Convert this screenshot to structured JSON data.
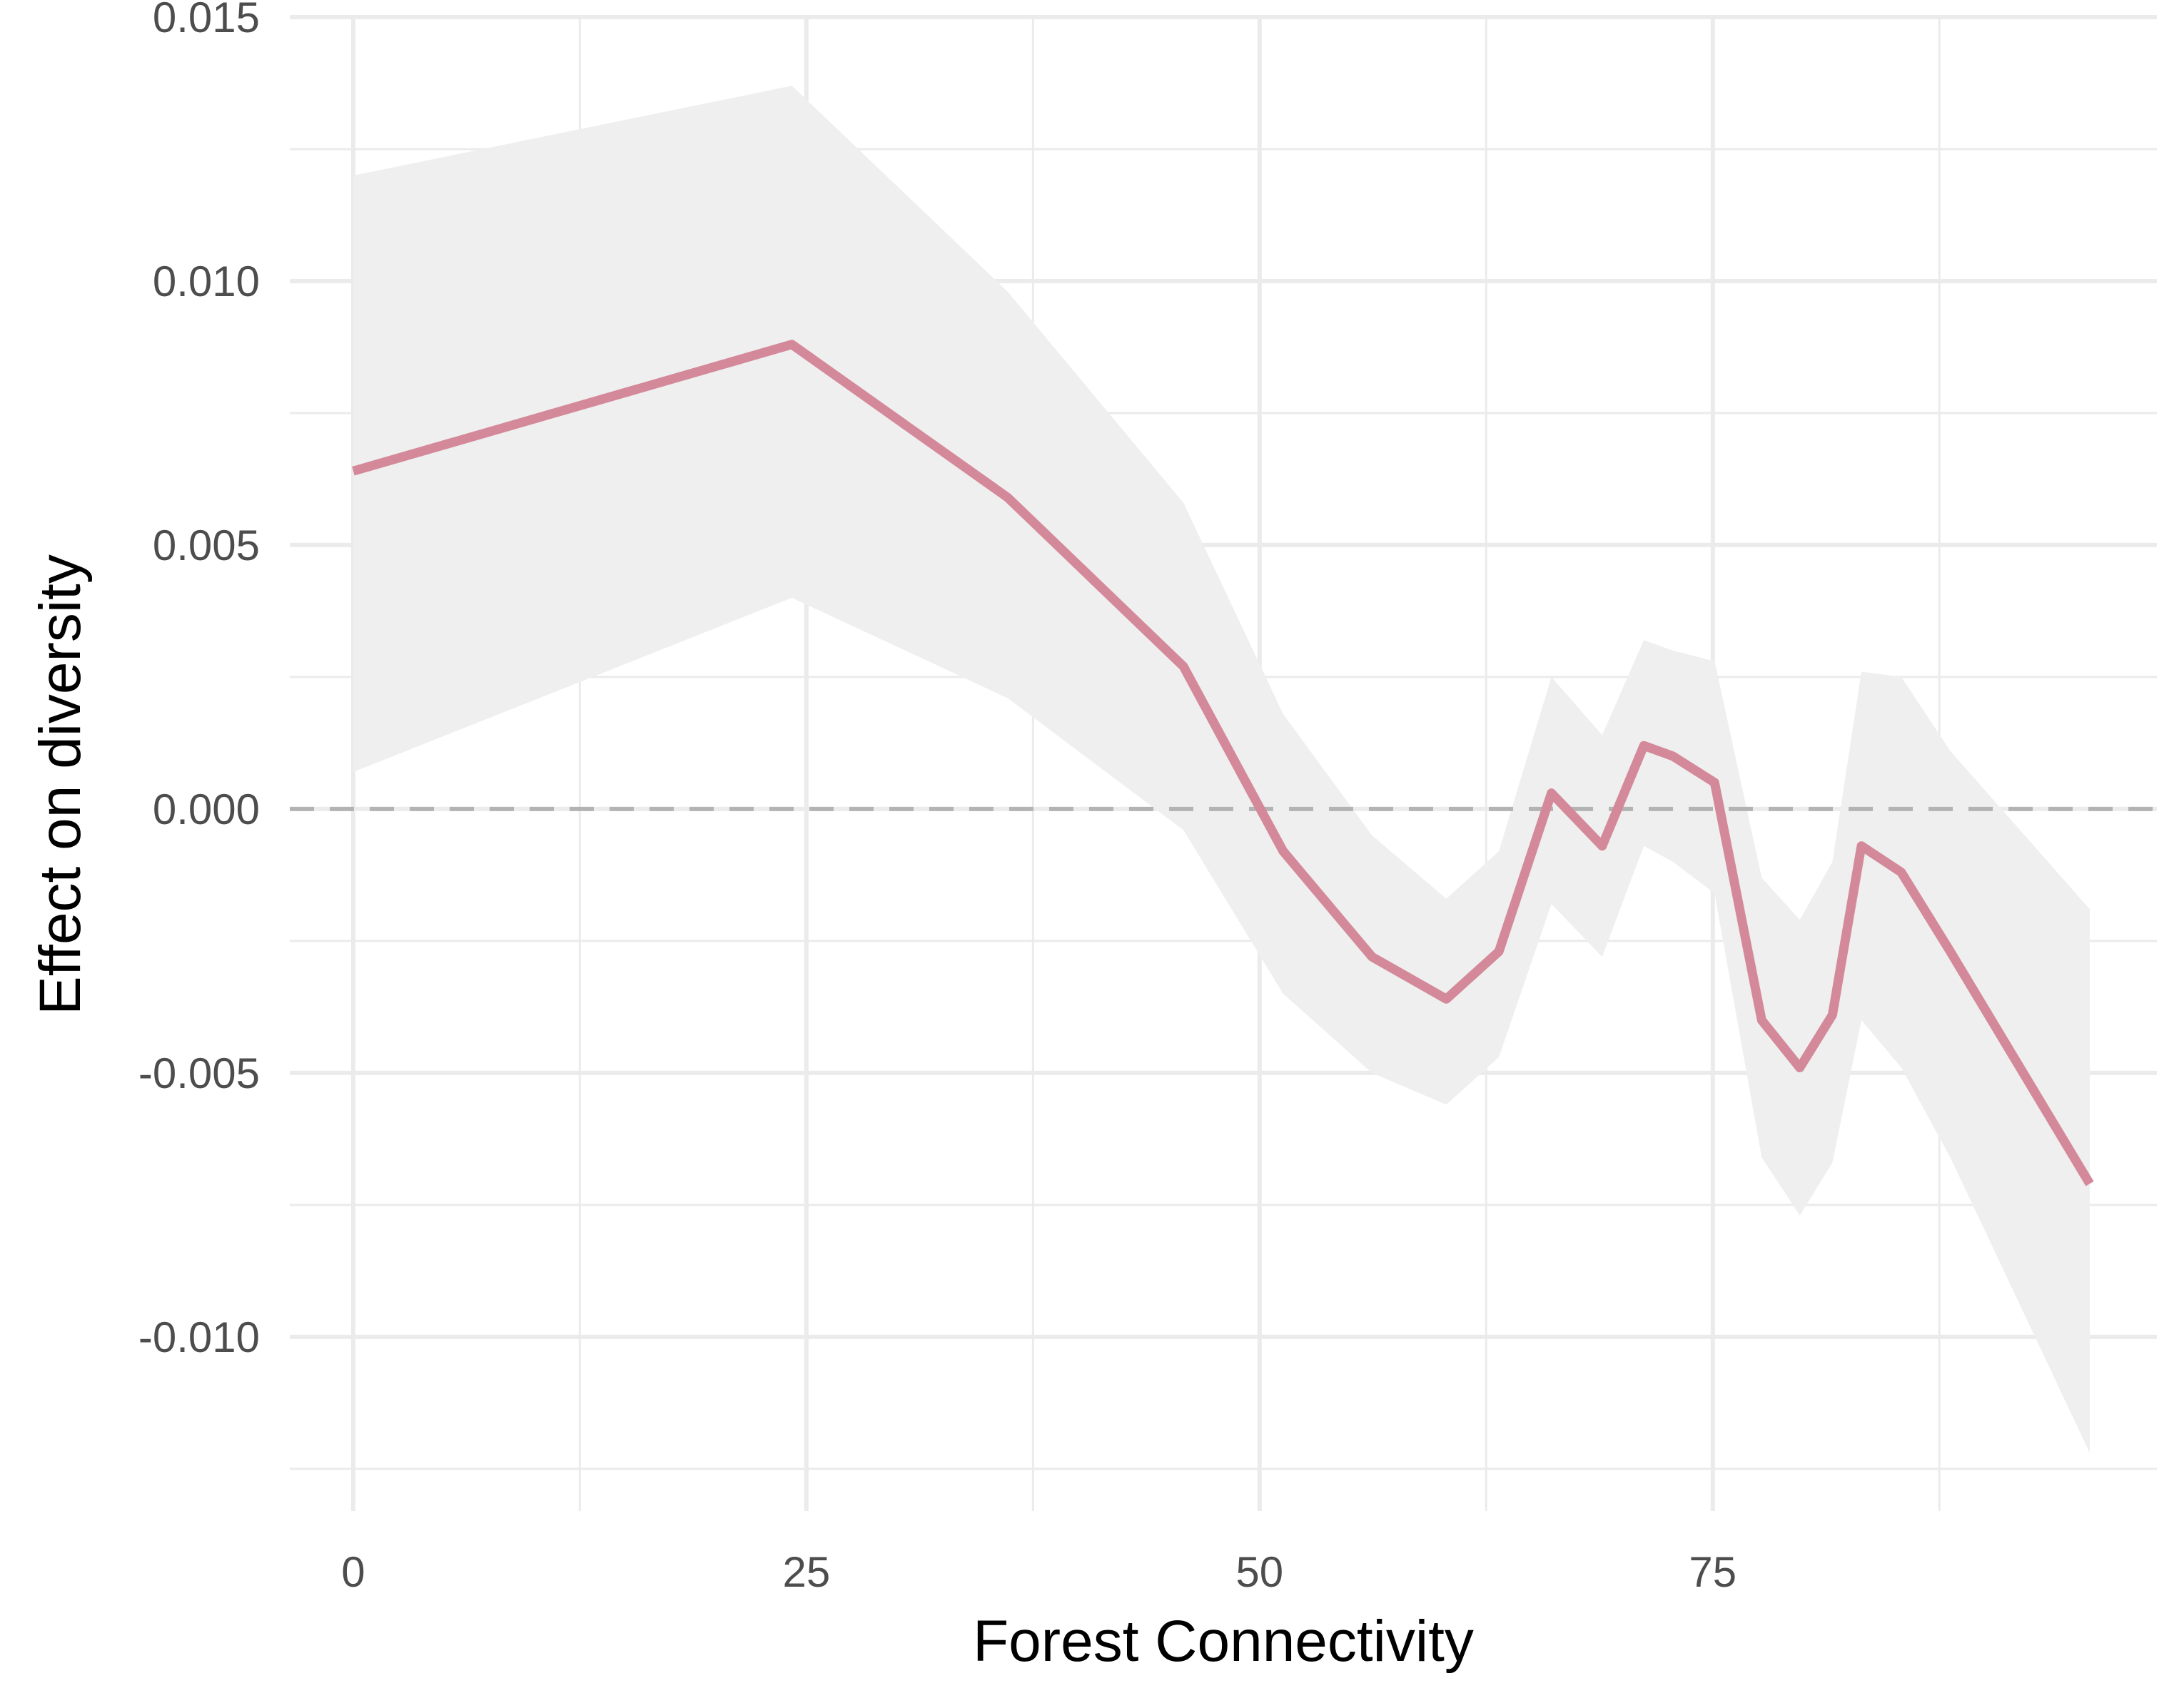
{
  "chart_data": {
    "type": "line",
    "xlabel": "Forest Connectivity",
    "ylabel": "Effect on diversity",
    "xlim": [
      -3.5,
      99.5
    ],
    "ylim": [
      -0.0133,
      0.015
    ],
    "x_ticks": [
      0,
      25,
      50,
      75
    ],
    "x_tick_labels": [
      "0",
      "25",
      "50",
      "75"
    ],
    "x_minor_ticks": [
      12.5,
      37.5,
      62.5,
      87.5
    ],
    "y_ticks": [
      -0.01,
      -0.005,
      0,
      0.005,
      0.01,
      0.015
    ],
    "y_tick_labels": [
      "-0.010",
      "-0.005",
      "0.000",
      "0.005",
      "0.010",
      "0.015"
    ],
    "y_minor_ticks": [
      -0.0125,
      -0.0075,
      -0.0025,
      0.0025,
      0.0075,
      0.0125
    ],
    "grid": true,
    "reference_line": {
      "y": 0,
      "style": "dashed",
      "color": "#b3b3b3"
    },
    "series": [
      {
        "color": "#d4899a",
        "ribbon_color": "#efefef",
        "x": [
          0,
          24.2,
          36.1,
          45.8,
          51.3,
          56.2,
          60.3,
          63.2,
          66.1,
          68.9,
          71.2,
          72.8,
          75.1,
          77.7,
          79.8,
          81.6,
          83.2,
          85.4,
          88.1,
          95.8
        ],
        "y": [
          0.0064,
          0.0088,
          0.0059,
          0.0027,
          -0.0008,
          -0.0028,
          -0.0036,
          -0.0027,
          0.0003,
          -0.0007,
          0.0012,
          0.001,
          0.0005,
          -0.004,
          -0.0049,
          -0.0039,
          -0.0007,
          -0.0012,
          -0.0027,
          -0.0071
        ],
        "lower": [
          0.0007,
          0.004,
          0.0021,
          -0.0004,
          -0.0035,
          -0.005,
          -0.0056,
          -0.0047,
          -0.0018,
          -0.0028,
          -0.0007,
          -0.001,
          -0.0016,
          -0.0066,
          -0.0077,
          -0.0067,
          -0.004,
          -0.0049,
          -0.0066,
          -0.0122
        ],
        "upper": [
          0.012,
          0.0137,
          0.0098,
          0.0058,
          0.0018,
          -0.0005,
          -0.0017,
          -0.0008,
          0.0025,
          0.0014,
          0.0032,
          0.003,
          0.0028,
          -0.0013,
          -0.0021,
          -0.001,
          0.0026,
          0.0025,
          0.0011,
          -0.0019
        ]
      }
    ]
  }
}
